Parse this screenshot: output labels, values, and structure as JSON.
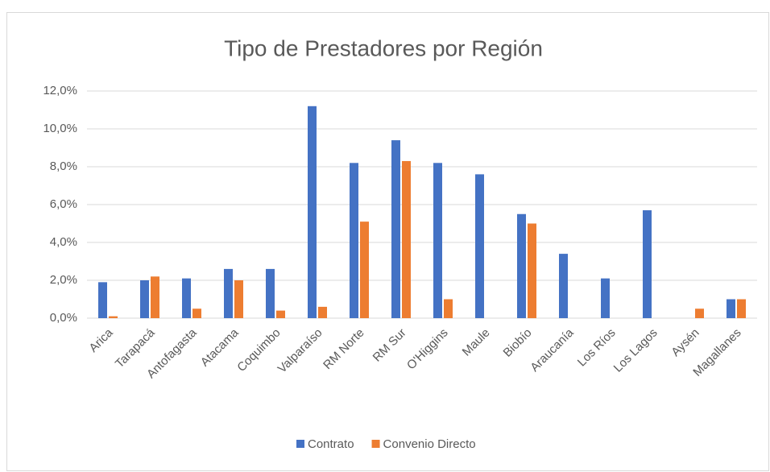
{
  "chart_data": {
    "type": "bar",
    "title": "Tipo de Prestadores por Región",
    "categories": [
      "Arica",
      "Tarapacá",
      "Antofagasta",
      "Atacama",
      "Coquimbo",
      "Valparaíso",
      "RM Norte",
      "RM Sur",
      "O'Higgins",
      "Maule",
      "Biobío",
      "Araucanía",
      "Los Ríos",
      "Los Lagos",
      "Aysén",
      "Magallanes"
    ],
    "series": [
      {
        "name": "Contrato",
        "color": "#4472c4",
        "values": [
          1.9,
          2.0,
          2.1,
          2.6,
          2.6,
          11.2,
          8.2,
          9.4,
          8.2,
          7.6,
          5.5,
          3.4,
          2.1,
          5.7,
          0,
          1.0
        ]
      },
      {
        "name": "Convenio Directo",
        "color": "#ed7d31",
        "values": [
          0.1,
          2.2,
          0.5,
          2.0,
          0.4,
          0.6,
          5.1,
          8.3,
          1.0,
          0,
          5.0,
          0,
          0,
          0,
          0.5,
          1.0
        ]
      }
    ],
    "ylim": [
      0,
      12
    ],
    "yticks": [
      {
        "value": 0,
        "label": "0,0%"
      },
      {
        "value": 2,
        "label": "2,0%"
      },
      {
        "value": 4,
        "label": "4,0%"
      },
      {
        "value": 6,
        "label": "6,0%"
      },
      {
        "value": 8,
        "label": "8,0%"
      },
      {
        "value": 10,
        "label": "10,0%"
      },
      {
        "value": 12,
        "label": "12,0%"
      }
    ],
    "grid": true,
    "legend": "bottom"
  }
}
